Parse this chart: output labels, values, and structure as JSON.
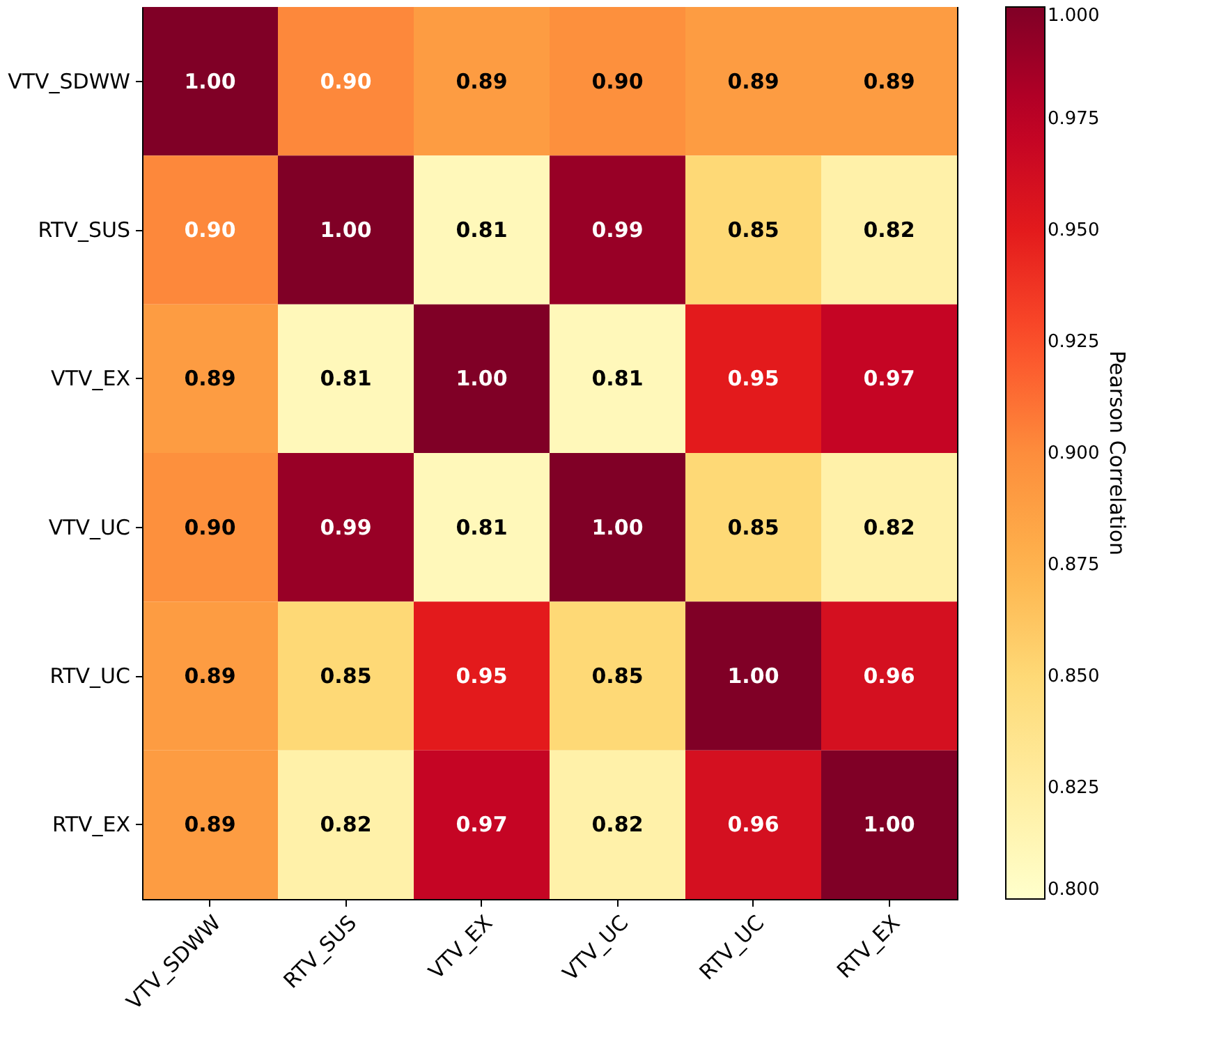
{
  "chart_data": {
    "type": "heatmap",
    "categories": [
      "VTV_SDWW",
      "RTV_SUS",
      "VTV_EX",
      "VTV_UC",
      "RTV_UC",
      "RTV_EX"
    ],
    "y_categories": [
      "VTV_SDWW",
      "RTV_SUS",
      "VTV_EX",
      "VTV_UC",
      "RTV_UC",
      "RTV_EX"
    ],
    "cells": [
      [
        1.0,
        0.902,
        0.89,
        0.898,
        0.89,
        0.89
      ],
      [
        0.902,
        1.0,
        0.81,
        0.99,
        0.85,
        0.82
      ],
      [
        0.89,
        0.81,
        1.0,
        0.81,
        0.95,
        0.97
      ],
      [
        0.898,
        0.99,
        0.81,
        1.0,
        0.85,
        0.82
      ],
      [
        0.89,
        0.85,
        0.95,
        0.85,
        1.0,
        0.96
      ],
      [
        0.89,
        0.82,
        0.97,
        0.82,
        0.96,
        1.0
      ]
    ],
    "cell_labels": [
      [
        "1.00",
        "0.90",
        "0.89",
        "0.90",
        "0.89",
        "0.89"
      ],
      [
        "0.90",
        "1.00",
        "0.81",
        "0.99",
        "0.85",
        "0.82"
      ],
      [
        "0.89",
        "0.81",
        "1.00",
        "0.81",
        "0.95",
        "0.97"
      ],
      [
        "0.90",
        "0.99",
        "0.81",
        "1.00",
        "0.85",
        "0.82"
      ],
      [
        "0.89",
        "0.85",
        "0.95",
        "0.85",
        "1.00",
        "0.96"
      ],
      [
        "0.89",
        "0.82",
        "0.97",
        "0.82",
        "0.96",
        "1.00"
      ]
    ],
    "clim": [
      0.8,
      1.0
    ],
    "cticks": [
      {
        "value": 0.8,
        "label": "0.800"
      },
      {
        "value": 0.825,
        "label": "0.825"
      },
      {
        "value": 0.85,
        "label": "0.850"
      },
      {
        "value": 0.875,
        "label": "0.875"
      },
      {
        "value": 0.9,
        "label": "0.900"
      },
      {
        "value": 0.925,
        "label": "0.925"
      },
      {
        "value": 0.95,
        "label": "0.950"
      },
      {
        "value": 0.975,
        "label": "0.975"
      },
      {
        "value": 1.0,
        "label": "1.000"
      }
    ],
    "clabel": "Pearson Correlation",
    "data_labels": true
  }
}
